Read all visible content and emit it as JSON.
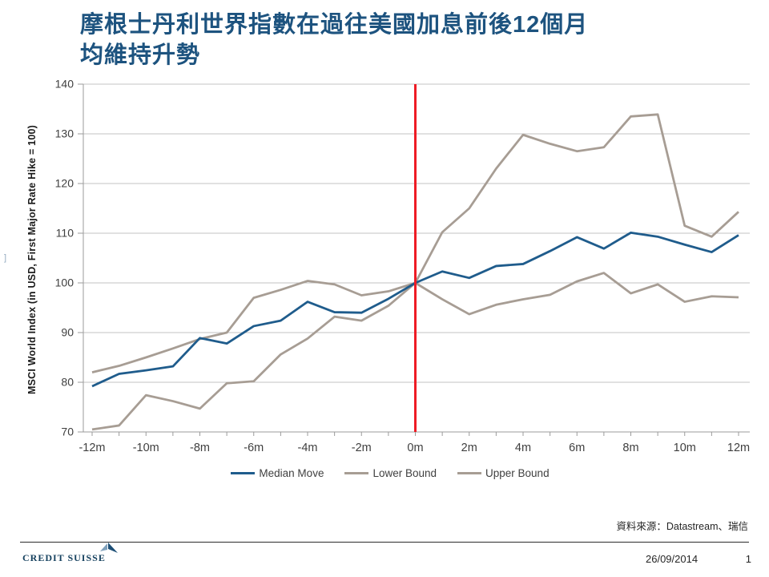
{
  "slide": {
    "title_line1": "摩根士丹利世界指數在過往美國加息前後12個月",
    "title_line2": "均維持升勢",
    "stray_mark": "]",
    "source_note": "資料來源：Datastream、瑞信",
    "date": "26/09/2014",
    "page_number": "1",
    "logo_text": "CREDIT SUISSE",
    "colors": {
      "title": "#1d537f",
      "median_line": "#1f5c8c",
      "bound_line": "#a79d94",
      "event_line": "#ee1c25",
      "gridline": "#c3c3c3",
      "axis": "#9b9b9b",
      "tick_label": "#3f3f3f"
    }
  },
  "chart_data": {
    "type": "line",
    "title": "",
    "xlabel": "",
    "ylabel": "MSCI World Index (in USD, First Major Rate Hike = 100)",
    "xlim": [
      -12,
      12
    ],
    "ylim": [
      70,
      140
    ],
    "grid": true,
    "legend_position": "bottom",
    "x_months": [
      -12,
      -11,
      -10,
      -9,
      -8,
      -7,
      -6,
      -5,
      -4,
      -3,
      -2,
      -1,
      0,
      1,
      2,
      3,
      4,
      5,
      6,
      7,
      8,
      9,
      10,
      11,
      12
    ],
    "xticks": [
      -12,
      -10,
      -8,
      -6,
      -4,
      -2,
      0,
      2,
      4,
      6,
      8,
      10,
      12
    ],
    "xtick_labels": [
      "-12m",
      "-10m",
      "-8m",
      "-6m",
      "-4m",
      "-2m",
      "0m",
      "2m",
      "4m",
      "6m",
      "8m",
      "10m",
      "12m"
    ],
    "yticks": [
      70,
      80,
      90,
      100,
      110,
      120,
      130,
      140
    ],
    "event_line": {
      "x": 0,
      "color": "#ee1c25",
      "label": "First Major Rate Hike"
    },
    "series": [
      {
        "name": "Median Move",
        "color": "#1f5c8c",
        "values": [
          79.2,
          81.7,
          82.4,
          83.2,
          88.9,
          87.8,
          91.3,
          92.4,
          96.2,
          94.1,
          94.0,
          96.8,
          100,
          102.3,
          101.0,
          103.4,
          103.8,
          106.4,
          109.2,
          106.9,
          110.1,
          109.3,
          107.7,
          106.2,
          109.6
        ]
      },
      {
        "name": "Lower Bound",
        "color": "#a79d94",
        "values": [
          70.5,
          71.3,
          77.4,
          76.2,
          74.7,
          79.8,
          80.2,
          85.6,
          88.8,
          93.2,
          92.4,
          95.4,
          100,
          96.7,
          93.7,
          95.6,
          96.7,
          97.6,
          100.3,
          102.0,
          97.9,
          99.7,
          96.2,
          97.3,
          97.1
        ]
      },
      {
        "name": "Upper Bound",
        "color": "#a79d94",
        "values": [
          82.0,
          83.3,
          85.0,
          86.8,
          88.7,
          90.0,
          97.0,
          98.6,
          100.4,
          99.7,
          97.5,
          98.3,
          100,
          110.2,
          115.0,
          123.0,
          129.8,
          128.0,
          126.5,
          127.3,
          133.5,
          133.9,
          111.5,
          109.3,
          114.3
        ]
      }
    ]
  }
}
